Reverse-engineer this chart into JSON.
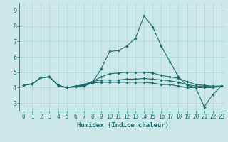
{
  "xlabel": "Humidex (Indice chaleur)",
  "ylabel": "",
  "bg_color": "#cce8e8",
  "line_color": "#1a6b6b",
  "grid_color": "#aad4d4",
  "xlim": [
    -0.5,
    23.5
  ],
  "ylim": [
    2.5,
    9.5
  ],
  "yticks": [
    3,
    4,
    5,
    6,
    7,
    8,
    9
  ],
  "xticks": [
    0,
    1,
    2,
    3,
    4,
    5,
    6,
    7,
    8,
    9,
    10,
    11,
    12,
    13,
    14,
    15,
    16,
    17,
    18,
    19,
    20,
    21,
    22,
    23
  ],
  "lines": [
    [
      4.15,
      4.25,
      4.65,
      4.7,
      4.15,
      4.0,
      4.05,
      4.1,
      4.35,
      5.2,
      6.35,
      6.4,
      6.7,
      7.2,
      8.65,
      7.95,
      6.7,
      5.7,
      4.7,
      4.15,
      4.0,
      2.75,
      3.55,
      4.1
    ],
    [
      4.15,
      4.25,
      4.65,
      4.7,
      4.15,
      4.0,
      4.05,
      4.1,
      4.3,
      4.35,
      4.35,
      4.35,
      4.35,
      4.35,
      4.35,
      4.3,
      4.2,
      4.2,
      4.1,
      4.0,
      4.0,
      4.0,
      4.0,
      4.1
    ],
    [
      4.15,
      4.25,
      4.65,
      4.7,
      4.15,
      4.0,
      4.1,
      4.15,
      4.4,
      4.5,
      4.5,
      4.5,
      4.55,
      4.55,
      4.6,
      4.55,
      4.5,
      4.45,
      4.35,
      4.2,
      4.1,
      4.1,
      4.05,
      4.1
    ],
    [
      4.15,
      4.25,
      4.65,
      4.7,
      4.15,
      4.0,
      4.1,
      4.2,
      4.4,
      4.7,
      4.9,
      4.95,
      5.0,
      5.0,
      5.0,
      4.95,
      4.8,
      4.7,
      4.6,
      4.4,
      4.2,
      4.15,
      4.1,
      4.1
    ]
  ],
  "tick_fontsize": 5.5,
  "xlabel_fontsize": 6.5
}
